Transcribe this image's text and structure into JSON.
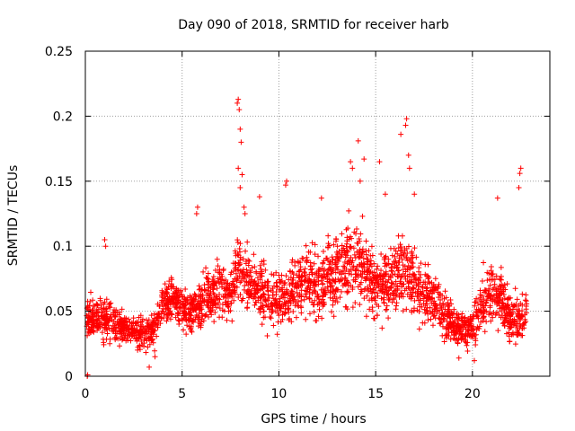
{
  "chart_data": {
    "type": "scatter",
    "title": "Day 090 of 2018, SRMTID for receiver harb",
    "xlabel": "GPS time / hours",
    "ylabel": "SRMTID / TECUs",
    "xlim": [
      0,
      24
    ],
    "ylim": [
      0,
      0.25
    ],
    "xticks": [
      "0",
      "5",
      "10",
      "15",
      "20"
    ],
    "yticks": [
      "0",
      "0.05",
      "0.1",
      "0.15",
      "0.2",
      "0.25"
    ],
    "grid": true,
    "colors": {
      "points": "#ff0000",
      "grid": "#a0a0a0",
      "axis": "#000000"
    },
    "series": [
      {
        "name": "SRMTID",
        "marker": "plus",
        "profile_x": [
          0,
          0.5,
          1,
          1.5,
          2,
          2.5,
          3,
          3.5,
          4,
          4.5,
          5,
          5.5,
          6,
          6.5,
          7,
          7.5,
          8,
          8.5,
          9,
          9.5,
          10,
          10.5,
          11,
          11.5,
          12,
          12.5,
          13,
          13.5,
          14,
          14.5,
          15,
          15.5,
          16,
          16.5,
          17,
          17.5,
          18,
          18.5,
          19,
          19.5,
          20,
          20.5,
          21,
          21.5,
          22,
          22.5,
          22.8
        ],
        "profile_mean": [
          0.048,
          0.045,
          0.044,
          0.04,
          0.036,
          0.034,
          0.032,
          0.035,
          0.055,
          0.062,
          0.052,
          0.05,
          0.055,
          0.062,
          0.068,
          0.06,
          0.085,
          0.072,
          0.068,
          0.062,
          0.058,
          0.065,
          0.07,
          0.072,
          0.07,
          0.075,
          0.078,
          0.085,
          0.09,
          0.082,
          0.07,
          0.072,
          0.075,
          0.085,
          0.07,
          0.065,
          0.06,
          0.05,
          0.038,
          0.035,
          0.04,
          0.055,
          0.065,
          0.06,
          0.04,
          0.045,
          0.05
        ],
        "profile_spread": [
          0.018,
          0.016,
          0.018,
          0.014,
          0.012,
          0.012,
          0.012,
          0.014,
          0.016,
          0.016,
          0.016,
          0.016,
          0.018,
          0.02,
          0.022,
          0.022,
          0.03,
          0.024,
          0.022,
          0.022,
          0.022,
          0.024,
          0.026,
          0.026,
          0.026,
          0.028,
          0.03,
          0.032,
          0.035,
          0.03,
          0.028,
          0.026,
          0.03,
          0.034,
          0.028,
          0.026,
          0.024,
          0.02,
          0.014,
          0.014,
          0.016,
          0.022,
          0.026,
          0.024,
          0.018,
          0.02,
          0.02
        ],
        "spikes": [
          [
            7.9,
            0.213
          ],
          [
            7.85,
            0.21
          ],
          [
            7.95,
            0.205
          ],
          [
            8.0,
            0.19
          ],
          [
            8.05,
            0.18
          ],
          [
            7.9,
            0.16
          ],
          [
            8.1,
            0.155
          ],
          [
            8.0,
            0.145
          ],
          [
            8.2,
            0.13
          ],
          [
            8.25,
            0.125
          ],
          [
            16.6,
            0.198
          ],
          [
            16.55,
            0.193
          ],
          [
            16.3,
            0.186
          ],
          [
            16.7,
            0.17
          ],
          [
            16.75,
            0.16
          ],
          [
            14.1,
            0.181
          ],
          [
            13.7,
            0.165
          ],
          [
            14.4,
            0.167
          ],
          [
            13.8,
            0.16
          ],
          [
            14.2,
            0.15
          ],
          [
            10.4,
            0.15
          ],
          [
            10.35,
            0.147
          ],
          [
            15.5,
            0.14
          ],
          [
            22.5,
            0.16
          ],
          [
            22.45,
            0.156
          ],
          [
            22.4,
            0.145
          ],
          [
            21.3,
            0.137
          ],
          [
            5.8,
            0.13
          ],
          [
            5.75,
            0.125
          ],
          [
            9.0,
            0.138
          ],
          [
            1.0,
            0.105
          ],
          [
            1.05,
            0.1
          ],
          [
            12.2,
            0.137
          ],
          [
            15.2,
            0.165
          ],
          [
            17.0,
            0.14
          ]
        ],
        "outliers_low": [
          [
            0.1,
            0.0
          ],
          [
            0.12,
            0.001
          ],
          [
            3.3,
            0.007
          ],
          [
            19.3,
            0.014
          ],
          [
            20.1,
            0.012
          ],
          [
            3.6,
            0.015
          ]
        ]
      }
    ]
  }
}
